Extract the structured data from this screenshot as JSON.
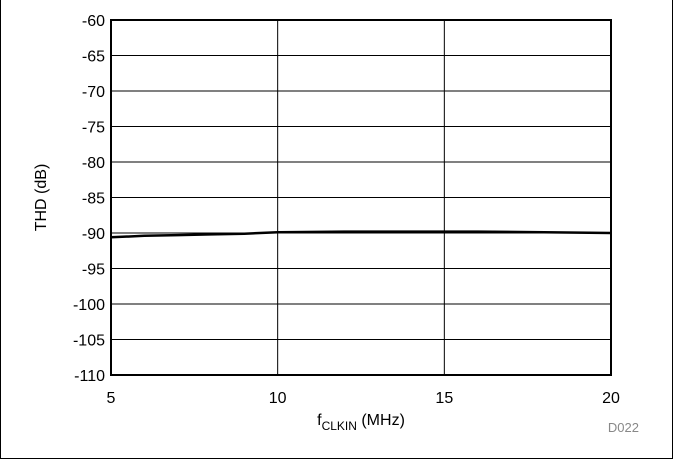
{
  "figure_id": "D022",
  "chart_data": {
    "type": "line",
    "title": "",
    "xlabel_main": "f",
    "xlabel_sub": "CLKIN",
    "xlabel_rest": " (MHz)",
    "ylabel": "THD (dB)",
    "xlim": [
      5,
      20
    ],
    "ylim": [
      -110,
      -60
    ],
    "x_ticks": [
      5,
      10,
      15,
      20
    ],
    "y_ticks": [
      -60,
      -65,
      -70,
      -75,
      -80,
      -85,
      -90,
      -95,
      -100,
      -105,
      -110
    ],
    "grid": true,
    "series": [
      {
        "x": [
          5,
          6,
          7,
          8,
          9,
          10,
          12,
          14,
          15,
          16,
          18,
          20
        ],
        "y": [
          -90.6,
          -90.4,
          -90.3,
          -90.2,
          -90.1,
          -89.9,
          -89.8,
          -89.8,
          -89.8,
          -89.8,
          -89.9,
          -90.0
        ],
        "color": "#000000"
      }
    ]
  }
}
